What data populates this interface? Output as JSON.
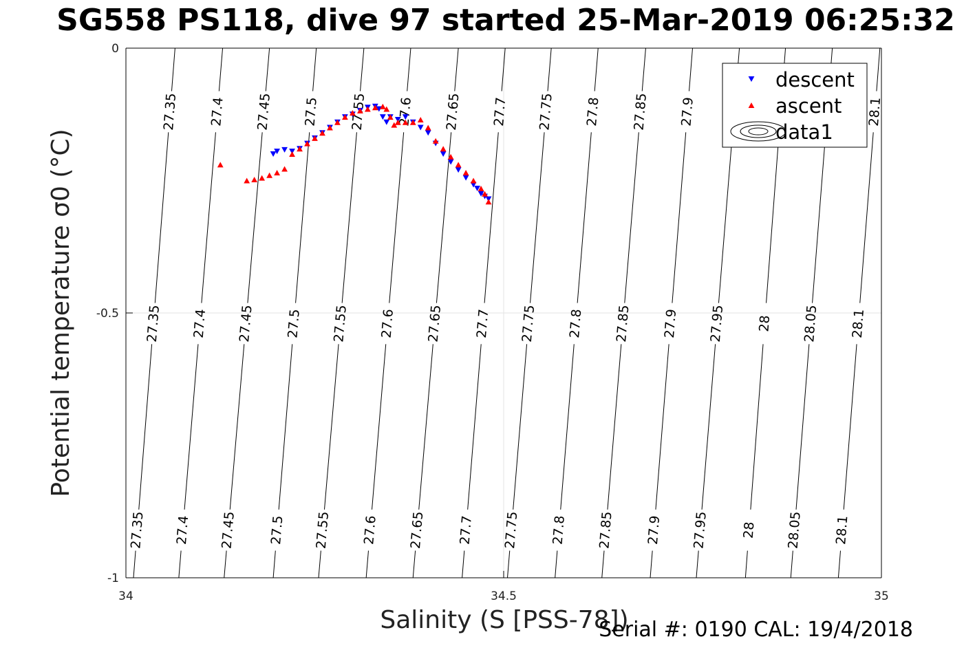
{
  "title": "SG558 PS118, dive 97 started 25-Mar-2019 06:25:32",
  "footer": "Serial #: 0190  CAL: 19/4/2018",
  "chart_data": {
    "type": "scatter",
    "title": "SG558 PS118, dive 97 started 25-Mar-2019 06:25:32",
    "xlabel": "Salinity (S [PSS-78])",
    "ylabel": "Potential temperature σ0 (°C)",
    "xlim": [
      34,
      35
    ],
    "ylim": [
      -1,
      0
    ],
    "xticks": [
      34,
      34.5,
      35
    ],
    "xtick_labels": [
      "34",
      "34.5",
      "35"
    ],
    "yticks": [
      -1,
      -0.5,
      0
    ],
    "ytick_labels": [
      "-1",
      "-0.5",
      "0"
    ],
    "grid": true,
    "legend": {
      "position": "top-right",
      "entries": [
        {
          "label": "descent",
          "marker": "triangle-down",
          "color": "#0000ff"
        },
        {
          "label": "ascent",
          "marker": "triangle-up",
          "color": "#ff0000"
        },
        {
          "label": "data1",
          "marker": "contour",
          "color": "#000000"
        }
      ]
    },
    "contours": {
      "levels": [
        27.35,
        27.4,
        27.45,
        27.5,
        27.55,
        27.6,
        27.65,
        27.7,
        27.75,
        27.8,
        27.85,
        27.9,
        27.95,
        28,
        28.05,
        28.1
      ],
      "level_labels": [
        "27.35",
        "27.4",
        "27.45",
        "27.5",
        "27.55",
        "27.6",
        "27.65",
        "27.7",
        "27.75",
        "27.8",
        "27.85",
        "27.9",
        "27.95",
        "28",
        "28.05",
        "28.1"
      ],
      "s_at_bottom": [
        34.01,
        34.07,
        34.13,
        34.195,
        34.255,
        34.318,
        34.38,
        34.445,
        34.505,
        34.568,
        34.63,
        34.694,
        34.755,
        34.82,
        34.88,
        34.943
      ],
      "s_at_top": [
        34.065,
        34.128,
        34.19,
        34.252,
        34.315,
        34.377,
        34.44,
        34.502,
        34.563,
        34.625,
        34.688,
        34.75,
        34.812,
        34.873,
        34.935,
        34.998
      ]
    },
    "series": [
      {
        "name": "descent",
        "marker": "triangle-down",
        "color": "#0000ff",
        "x": [
          34.195,
          34.2,
          34.21,
          34.22,
          34.23,
          34.24,
          34.25,
          34.26,
          34.27,
          34.28,
          34.29,
          34.3,
          34.31,
          34.32,
          34.33,
          34.335,
          34.34,
          34.345,
          34.35,
          34.36,
          34.37,
          34.38,
          34.39,
          34.4,
          34.41,
          34.42,
          34.43,
          34.44,
          34.45,
          34.46,
          34.465,
          34.47,
          34.475,
          34.48
        ],
        "y": [
          -0.2,
          -0.195,
          -0.192,
          -0.195,
          -0.19,
          -0.18,
          -0.17,
          -0.16,
          -0.15,
          -0.14,
          -0.13,
          -0.125,
          -0.118,
          -0.112,
          -0.11,
          -0.115,
          -0.13,
          -0.14,
          -0.13,
          -0.135,
          -0.13,
          -0.14,
          -0.15,
          -0.16,
          -0.18,
          -0.2,
          -0.215,
          -0.23,
          -0.245,
          -0.258,
          -0.265,
          -0.275,
          -0.28,
          -0.285
        ]
      },
      {
        "name": "ascent",
        "marker": "triangle-up",
        "color": "#ff0000",
        "x": [
          34.125,
          34.16,
          34.17,
          34.18,
          34.19,
          34.2,
          34.21,
          34.22,
          34.23,
          34.24,
          34.25,
          34.26,
          34.27,
          34.28,
          34.29,
          34.3,
          34.31,
          34.32,
          34.33,
          34.34,
          34.345,
          34.35,
          34.355,
          34.36,
          34.37,
          34.38,
          34.39,
          34.4,
          34.41,
          34.42,
          34.43,
          34.44,
          34.45,
          34.46,
          34.47,
          34.475,
          34.48
        ],
        "y": [
          -0.22,
          -0.25,
          -0.248,
          -0.245,
          -0.24,
          -0.235,
          -0.228,
          -0.2,
          -0.19,
          -0.18,
          -0.17,
          -0.16,
          -0.15,
          -0.14,
          -0.13,
          -0.122,
          -0.118,
          -0.115,
          -0.112,
          -0.11,
          -0.115,
          -0.13,
          -0.145,
          -0.14,
          -0.14,
          -0.14,
          -0.135,
          -0.15,
          -0.175,
          -0.19,
          -0.205,
          -0.22,
          -0.235,
          -0.25,
          -0.265,
          -0.275,
          -0.29
        ]
      }
    ]
  }
}
